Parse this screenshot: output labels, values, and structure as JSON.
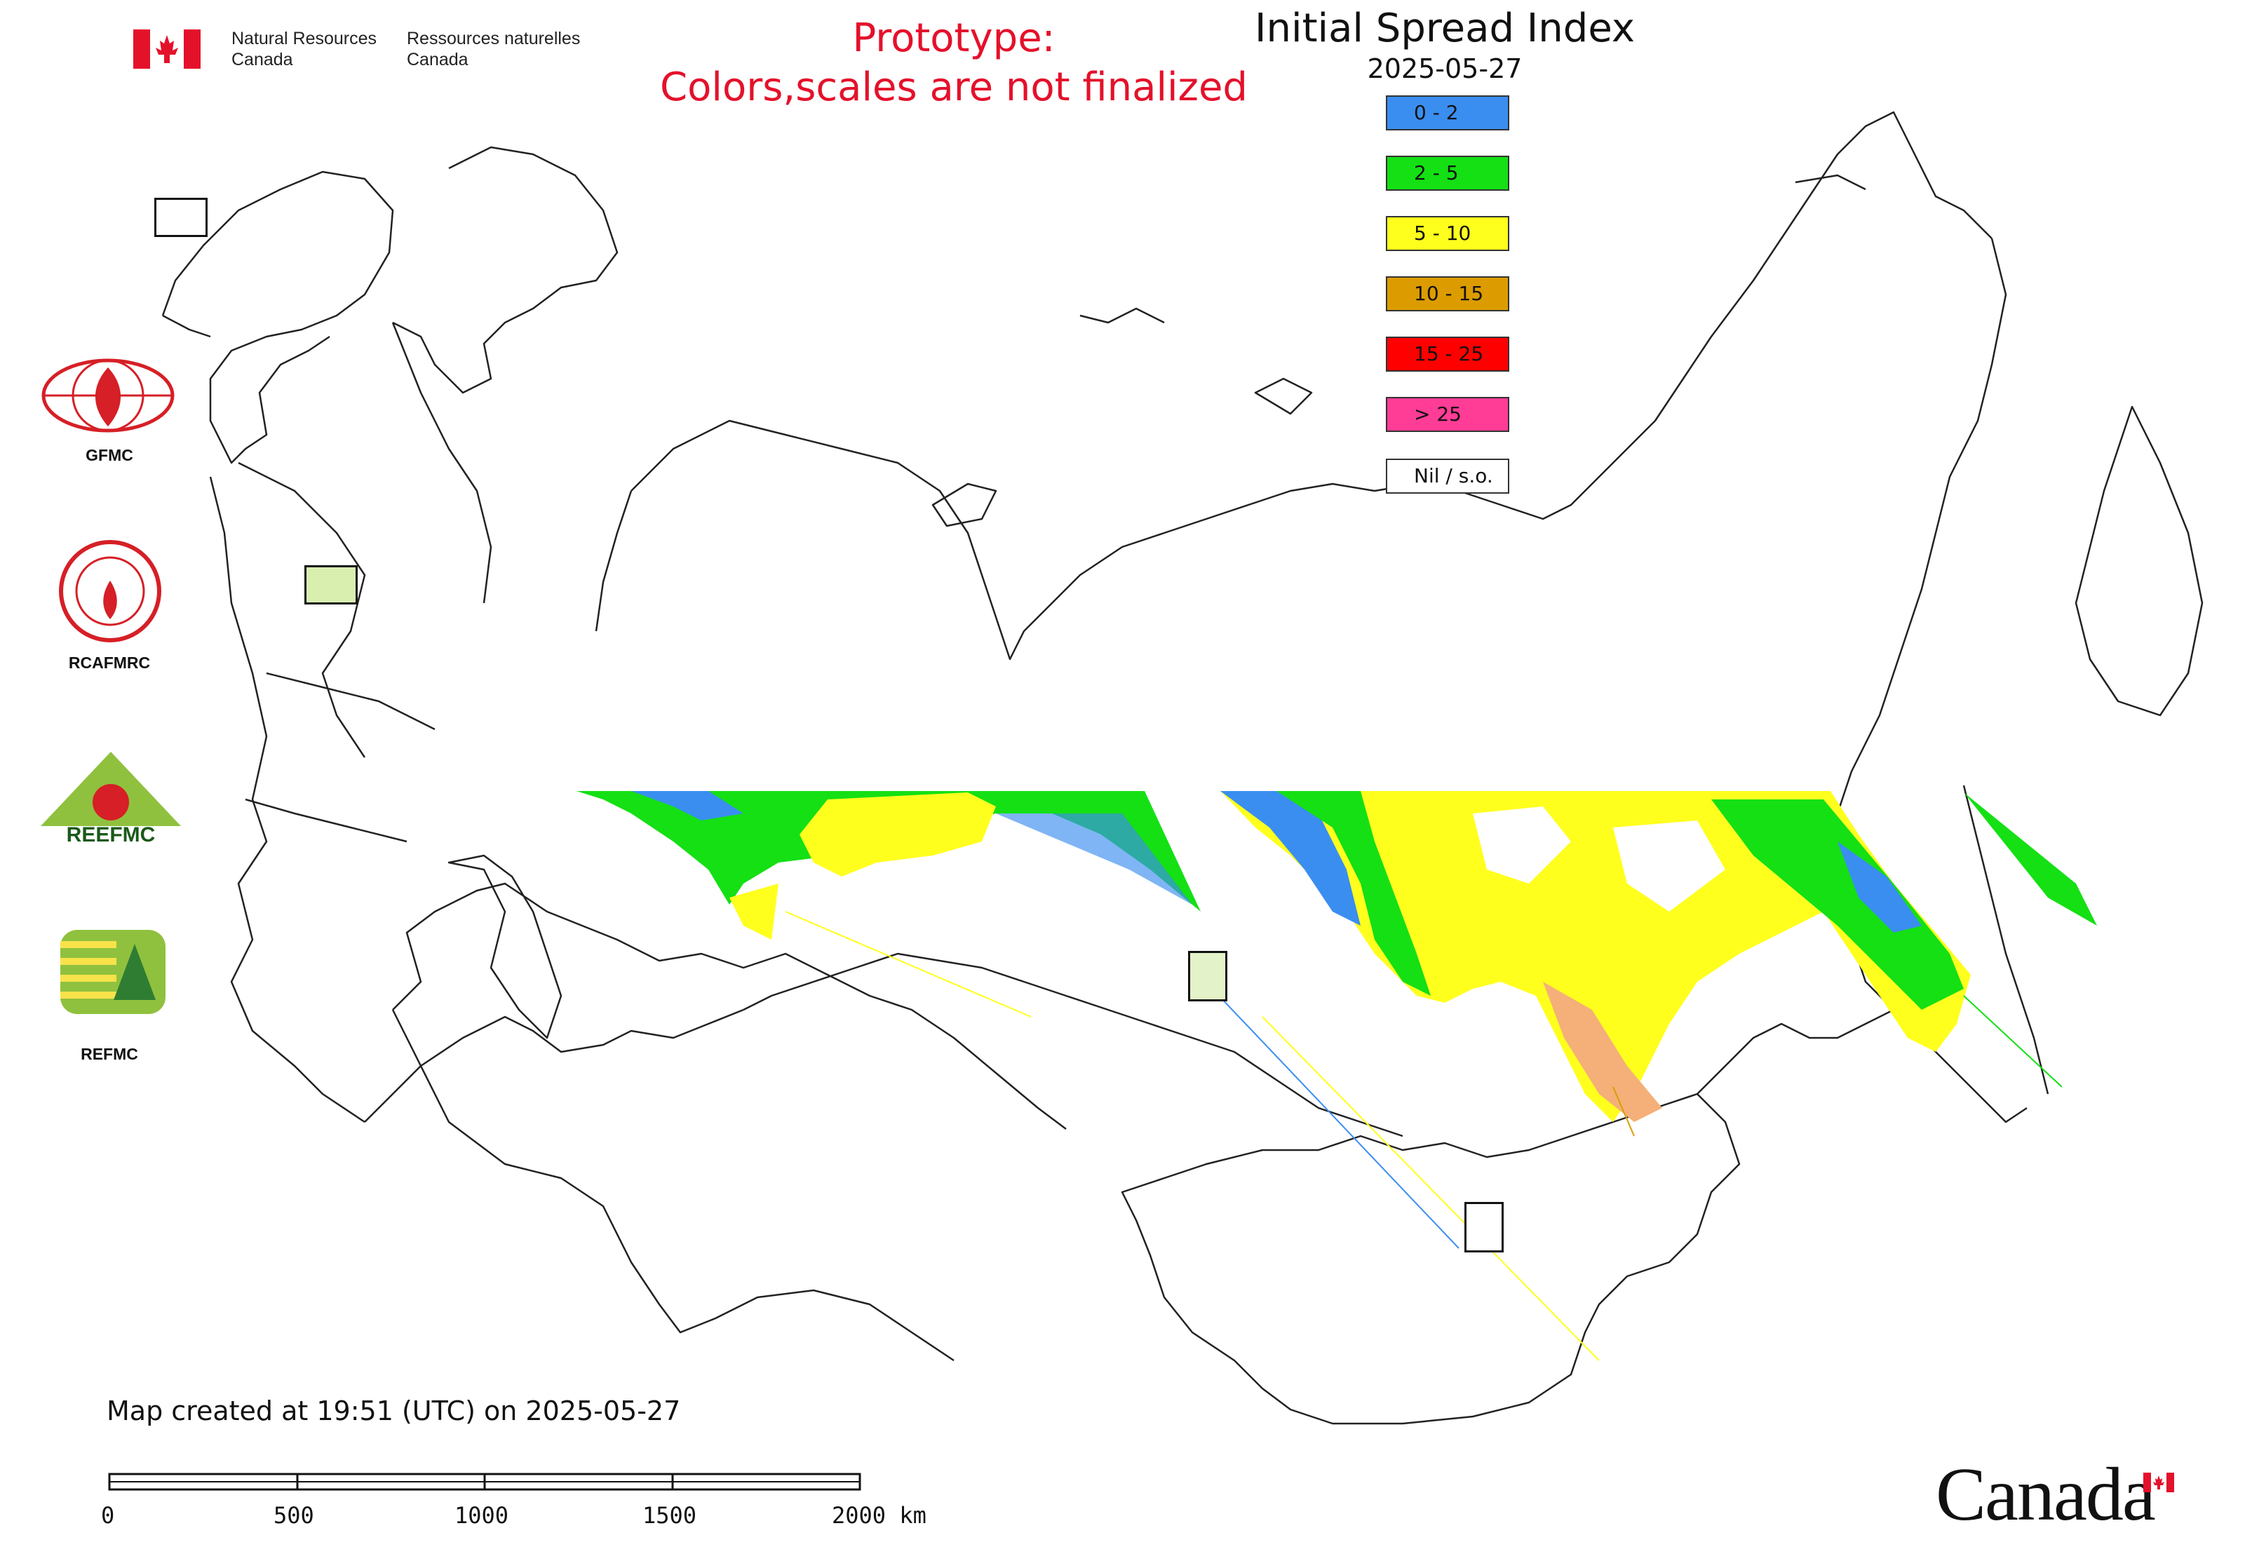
{
  "header": {
    "dept_en_line1": "Natural Resources",
    "dept_en_line2": "Canada",
    "dept_fr_line1": "Ressources naturelles",
    "dept_fr_line2": "Canada",
    "flag_icon": "canada-flag-icon"
  },
  "prototype_notice": {
    "line1": "Prototype:",
    "line2": "Colors,scales are not finalized",
    "color": "#e4112b"
  },
  "title": "Initial Spread Index",
  "date": "2025-05-27",
  "legend": [
    {
      "label": "0 - 2",
      "color": "#3a8ef0"
    },
    {
      "label": "2 - 5",
      "color": "#14e014"
    },
    {
      "label": "5 - 10",
      "color": "#ffff1e"
    },
    {
      "label": "10 - 15",
      "color": "#dc9c00"
    },
    {
      "label": "15 - 25",
      "color": "#ff0000"
    },
    {
      "label": "> 25",
      "color": "#ff3c96"
    },
    {
      "label": "Nil / s.o.",
      "color": "#ffffff"
    }
  ],
  "side_logos": [
    {
      "label": "GFMC",
      "icon": "gfmc-logo-icon"
    },
    {
      "label": "RCAFMRC",
      "icon": "rcafmrc-logo-icon"
    },
    {
      "label": "REEFMC",
      "icon": "reefmc-logo-icon"
    },
    {
      "label": "REFMC",
      "icon": "refmc-logo-icon"
    }
  ],
  "footer": {
    "created": "Map created at 19:51 (UTC) on 2025-05-27",
    "scale_labels": [
      "0",
      "500",
      "1000",
      "1500",
      "2000 km"
    ],
    "wordmark": "Canada"
  }
}
